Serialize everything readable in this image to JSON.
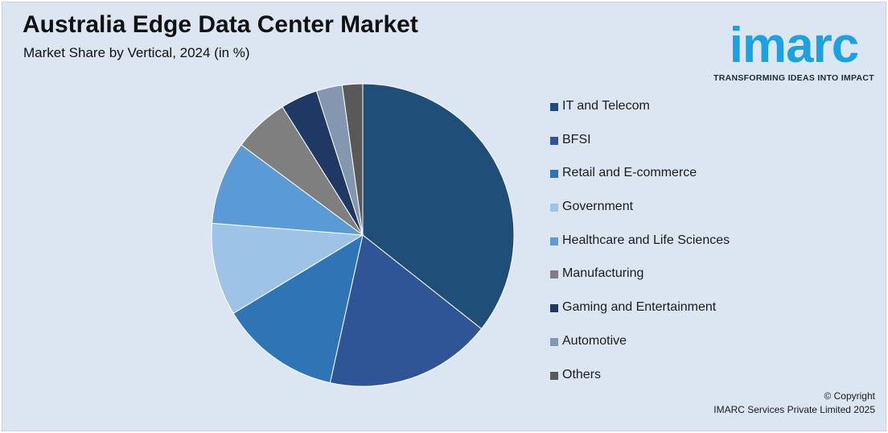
{
  "header": {
    "title": "Australia Edge Data Center Market",
    "subtitle": "Market Share by Vertical, 2024 (in %)"
  },
  "logo": {
    "word": "imarc",
    "tagline": "TRANSFORMING IDEAS INTO IMPACT"
  },
  "chart_data": {
    "type": "pie",
    "title": "Australia Edge Data Center Market",
    "subtitle": "Market Share by Vertical, 2024 (in %)",
    "categories": [
      "IT and Telecom",
      "BFSI",
      "Retail and E-commerce",
      "Government",
      "Healthcare and Life Sciences",
      "Manufacturing",
      "Gaming and Entertainment",
      "Automotive",
      "Others"
    ],
    "values": [
      36.0,
      18.0,
      13.0,
      10.0,
      9.0,
      6.0,
      4.0,
      2.8,
      2.2
    ],
    "colors": [
      "#1f4e79",
      "#2f5597",
      "#2e75b6",
      "#9dc3e6",
      "#5b9bd5",
      "#7f7f7f",
      "#203864",
      "#8497b0",
      "#595959"
    ],
    "legend_position": "right",
    "start_angle": "12 o'clock",
    "direction": "clockwise"
  },
  "footer": {
    "copyright_line1": "© Copyright",
    "copyright_line2": "IMARC Services Private Limited 2025"
  }
}
